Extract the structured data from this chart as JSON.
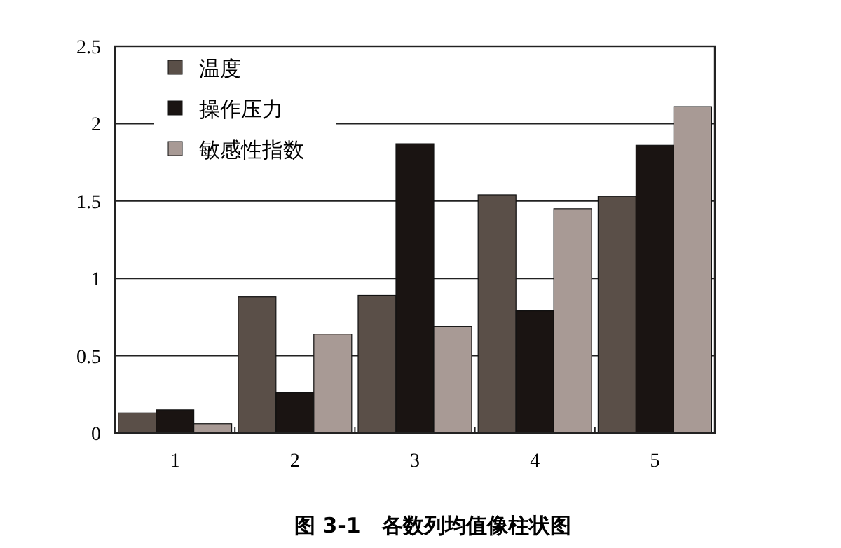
{
  "chart_data": {
    "type": "bar",
    "title": "图 3-1　各数列均值像柱状图",
    "categories": [
      "1",
      "2",
      "3",
      "4",
      "5"
    ],
    "series": [
      {
        "name": "温度",
        "color": "#5a4f48",
        "values": [
          0.13,
          0.88,
          0.89,
          1.54,
          1.53
        ]
      },
      {
        "name": "操作压力",
        "color": "#1a1412",
        "values": [
          0.15,
          0.26,
          1.87,
          0.79,
          1.86
        ]
      },
      {
        "name": "敏感性指数",
        "color": "#a89a95",
        "values": [
          0.06,
          0.64,
          0.69,
          1.45,
          2.11
        ]
      }
    ],
    "ylim": [
      0,
      2.5
    ],
    "yticks": [
      0,
      0.5,
      1,
      1.5,
      2,
      2.5
    ],
    "grid": "y",
    "legend": "top left"
  }
}
